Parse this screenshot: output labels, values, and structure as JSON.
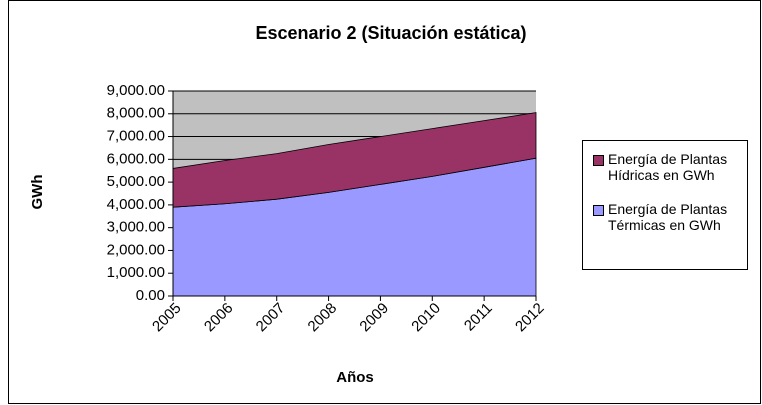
{
  "chart_data": {
    "type": "stacked-area",
    "title": "Escenario 2 (Situación estática)",
    "x_label": "Años",
    "y_label": "GWh",
    "categories": [
      "2005",
      "2006",
      "2007",
      "2008",
      "2009",
      "2010",
      "2011",
      "2012"
    ],
    "series": [
      {
        "name": "Energía de Plantas Térmicas en GWh",
        "color": "#9999ff",
        "values": [
          3900,
          4050,
          4250,
          4550,
          4900,
          5250,
          5650,
          6050
        ]
      },
      {
        "name": "Energía de Plantas Hídricas en GWh",
        "color": "#993366",
        "values": [
          1700,
          1900,
          2000,
          2100,
          2100,
          2100,
          2050,
          2000
        ]
      }
    ],
    "ylim": [
      0,
      9000
    ],
    "yticks": [
      {
        "value": 0,
        "label": "0.00"
      },
      {
        "value": 1000,
        "label": "1,000.00"
      },
      {
        "value": 2000,
        "label": "2,000.00"
      },
      {
        "value": 3000,
        "label": "3,000.00"
      },
      {
        "value": 4000,
        "label": "4,000.00"
      },
      {
        "value": 5000,
        "label": "5,000.00"
      },
      {
        "value": 6000,
        "label": "6,000.00"
      },
      {
        "value": 7000,
        "label": "7,000.00"
      },
      {
        "value": 8000,
        "label": "8,000.00"
      },
      {
        "value": 9000,
        "label": "9,000.00"
      }
    ],
    "grid": true,
    "plot_background": "#c0c0c0",
    "legend": "right"
  }
}
